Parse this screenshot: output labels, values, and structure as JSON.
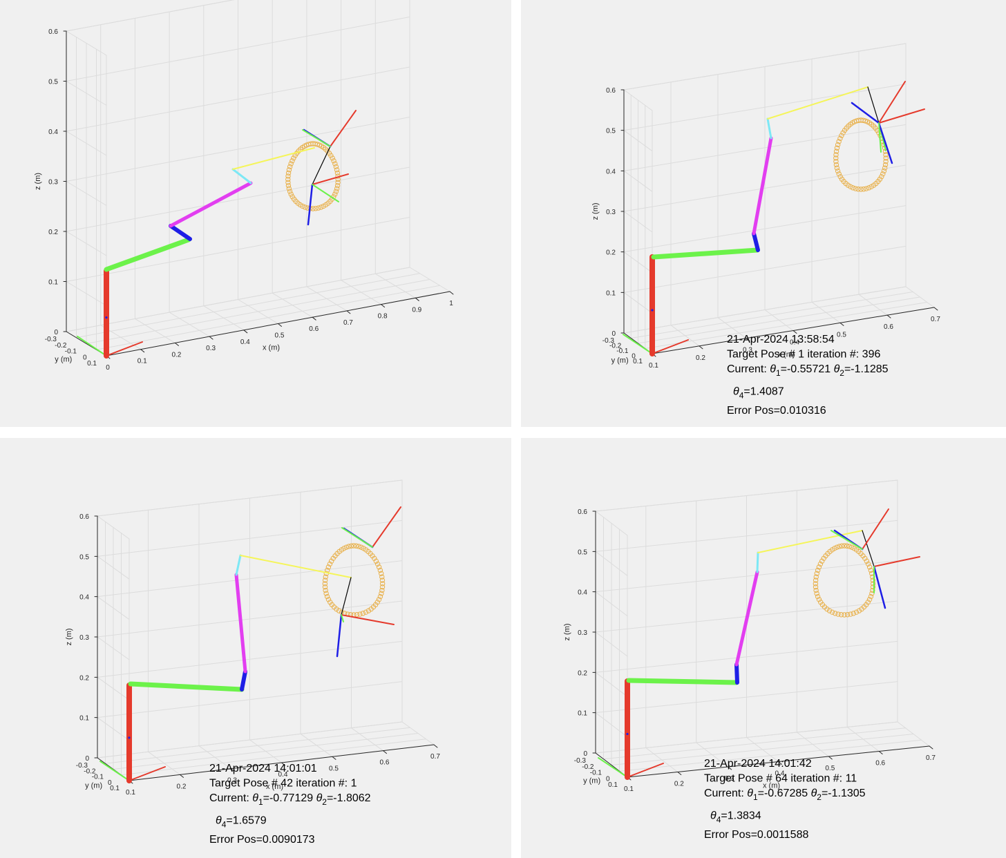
{
  "chart_data": [
    {
      "type": "line",
      "title": "",
      "xlabel": "x (m)",
      "ylabel": "y (m)",
      "zlabel": "z (m)",
      "x_ticks": [
        "0",
        "0.1",
        "0.2",
        "0.3",
        "0.4",
        "0.5",
        "0.6",
        "0.7",
        "0.8",
        "0.9",
        "1"
      ],
      "y_ticks": [
        "0.1",
        "0",
        "-0.1",
        "-0.2",
        "-0.3"
      ],
      "z_ticks": [
        "0",
        "0.1",
        "0.2",
        "0.3",
        "0.4",
        "0.5",
        "0.6"
      ],
      "grid": true,
      "annotation": null
    },
    {
      "type": "line",
      "title": "",
      "xlabel": "x (m)",
      "ylabel": "y (m)",
      "zlabel": "z (m)",
      "x_ticks": [
        "0.1",
        "0.2",
        "0.3",
        "0.4",
        "0.5",
        "0.6",
        "0.7"
      ],
      "y_ticks": [
        "0.1",
        "0",
        "-0.1",
        "-0.2",
        "-0.3"
      ],
      "z_ticks": [
        "0",
        "0.1",
        "0.2",
        "0.3",
        "0.4",
        "0.5",
        "0.6"
      ],
      "grid": true,
      "annotation": {
        "timestamp": "21-Apr-2024 13:58:54",
        "target_pose": "Target Pose # 1   iteration #: 396",
        "current_prefix": "Current:",
        "theta1": "=-0.55721",
        "theta2": "=-1.1285",
        "theta4": "=1.4087",
        "error": "Error Pos=0.010316"
      }
    },
    {
      "type": "line",
      "title": "",
      "xlabel": "x (m)",
      "ylabel": "y (m)",
      "zlabel": "z (m)",
      "x_ticks": [
        "0.1",
        "0.2",
        "0.3",
        "0.4",
        "0.5",
        "0.6",
        "0.7"
      ],
      "y_ticks": [
        "0.1",
        "0",
        "-0.1",
        "-0.2",
        "-0.3"
      ],
      "z_ticks": [
        "0",
        "0.1",
        "0.2",
        "0.3",
        "0.4",
        "0.5",
        "0.6"
      ],
      "grid": true,
      "annotation": {
        "timestamp": "21-Apr-2024 14:01:01",
        "target_pose": "Target Pose # 42   iteration #: 1",
        "current_prefix": "Current:",
        "theta1": "=-0.77129",
        "theta2": "=-1.8062",
        "theta4": "=1.6579",
        "error": "Error Pos=0.0090173"
      }
    },
    {
      "type": "line",
      "title": "",
      "xlabel": "x (m)",
      "ylabel": "y (m)",
      "zlabel": "z (m)",
      "x_ticks": [
        "0.1",
        "0.2",
        "0.3",
        "0.4",
        "0.5",
        "0.6",
        "0.7"
      ],
      "y_ticks": [
        "0.1",
        "0",
        "-0.1",
        "-0.2",
        "-0.3"
      ],
      "z_ticks": [
        "0",
        "0.1",
        "0.2",
        "0.3",
        "0.4",
        "0.5",
        "0.6"
      ],
      "grid": true,
      "annotation": {
        "timestamp": "21-Apr-2024 14:01:42",
        "target_pose": "Target Pose # 64   iteration #: 11",
        "current_prefix": "Current:",
        "theta1": "=-0.67285",
        "theta2": "=-1.1305",
        "theta4": "=1.3834",
        "error": "Error Pos=0.0011588"
      }
    }
  ],
  "symbols": {
    "theta": "θ"
  },
  "colors": {
    "background": "#f0f0f0",
    "grid": "#dcdcdc",
    "axis": "#262626",
    "link_base": "#e53a2c",
    "link_upper": "#6cf24a",
    "link_wrist": "#1e1ee6",
    "link_forearm": "#e23ef0",
    "link_cyan": "#7de8f5",
    "link_yellow": "#f5f55a",
    "frame_x": "#e53a2c",
    "frame_y": "#6cf24a",
    "frame_z": "#1e1ee6",
    "target_ring": "#e8b04a",
    "end_effector": "#000000"
  }
}
